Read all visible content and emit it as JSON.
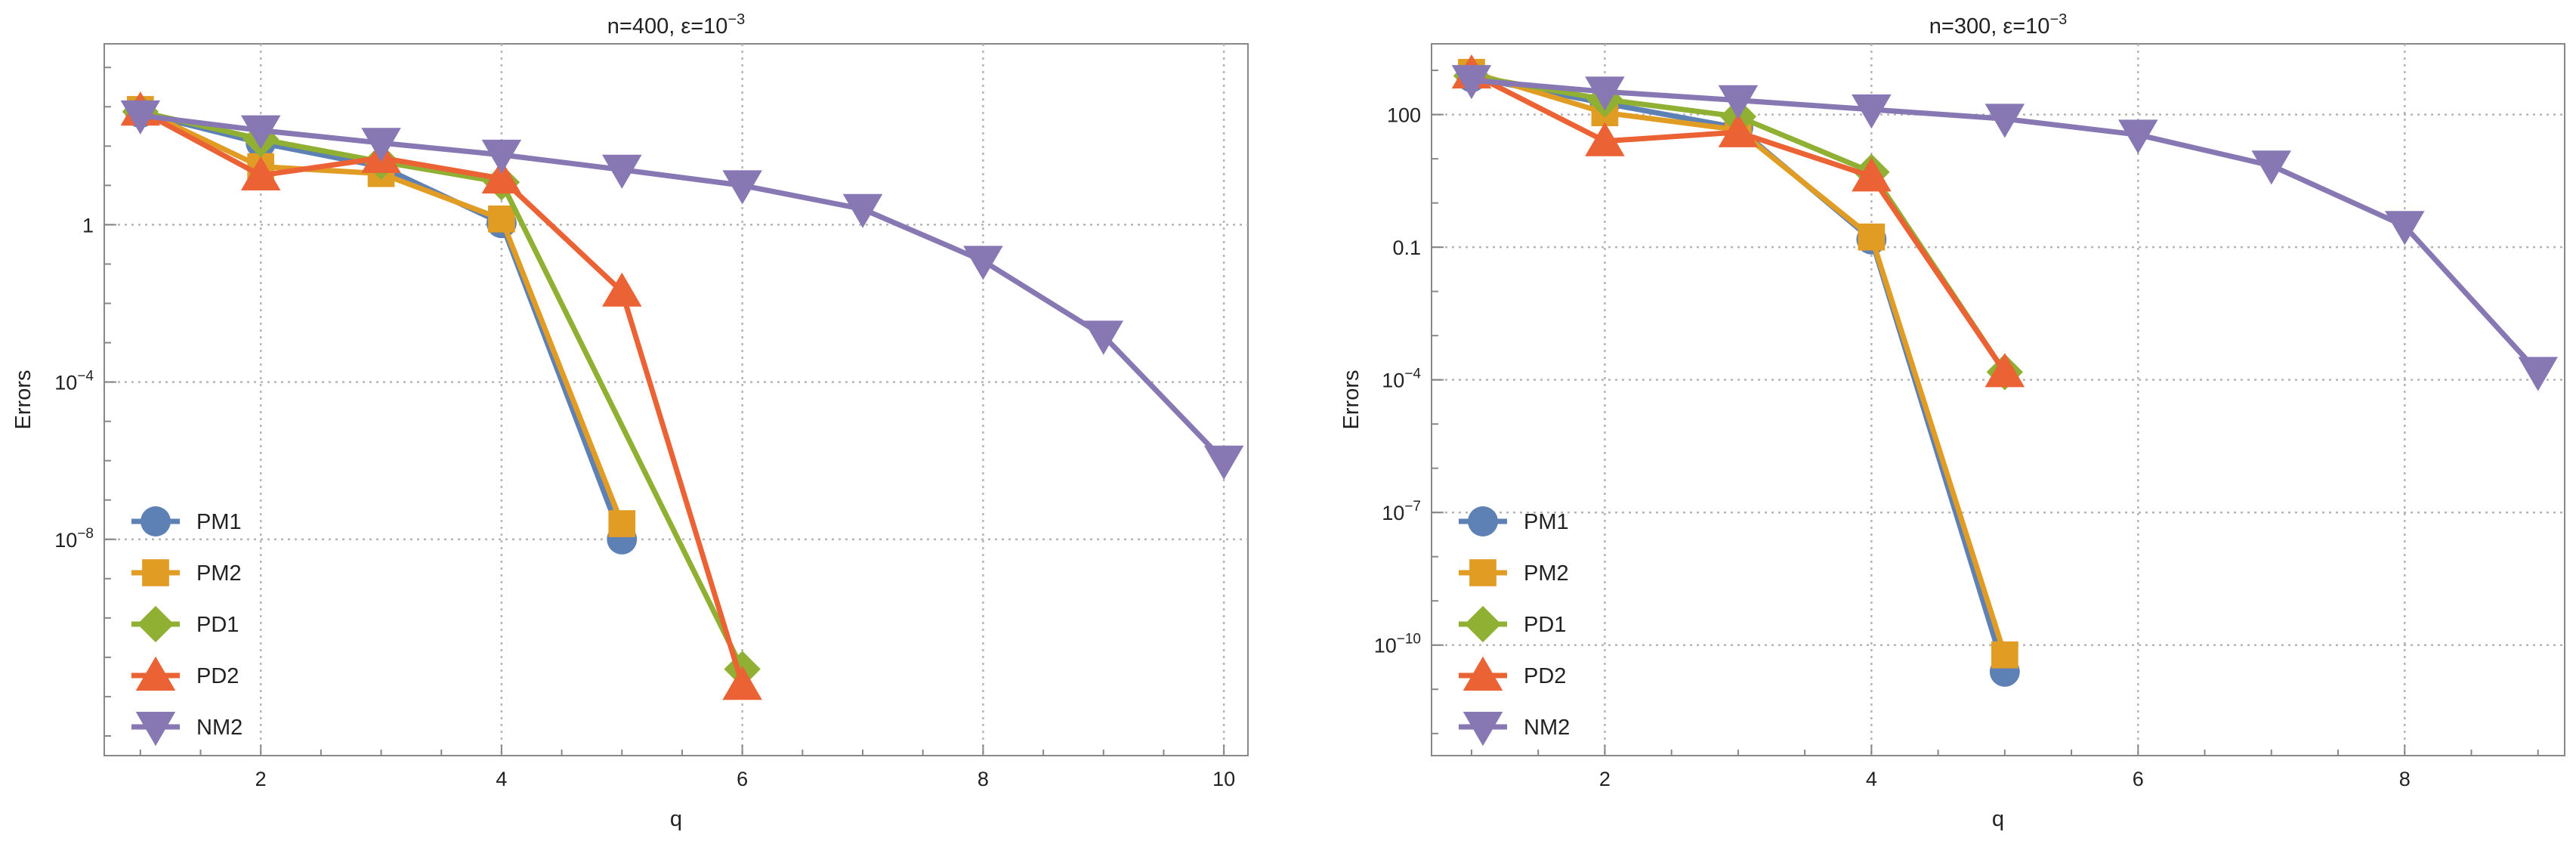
{
  "colors": {
    "PM1": "#5e81b5",
    "PM2": "#e19c24",
    "PD1": "#8fb032",
    "PD2": "#eb6235",
    "NM2": "#8778b3",
    "grid": "#b5b5b5",
    "frame": "#888888"
  },
  "chart_data": [
    {
      "type": "line",
      "title": "n=400, ε=10",
      "title_exponent": "−3",
      "xlabel": "q",
      "ylabel": "Errors",
      "y_scale": "log",
      "xlim": [
        0.7,
        10.2
      ],
      "ylim_log10": [
        -13.5,
        4.6
      ],
      "grid": true,
      "legend_position": "bottom-left",
      "x_ticks": [
        2,
        4,
        6,
        8,
        10
      ],
      "y_ticks": [
        {
          "value": 1,
          "label": "1",
          "sup": ""
        },
        {
          "value": 0.0001,
          "label": "10",
          "sup": "−4"
        },
        {
          "value": 1e-08,
          "label": "10",
          "sup": "−8"
        }
      ],
      "series": [
        {
          "name": "PM1",
          "marker": "circle",
          "x": [
            1,
            2,
            3,
            4,
            5
          ],
          "y": [
            700,
            120,
            30,
            1.1,
            1e-08
          ]
        },
        {
          "name": "PM2",
          "marker": "square",
          "x": [
            1,
            2,
            3,
            4,
            5
          ],
          "y": [
            850,
            30,
            20,
            1.4,
            2.5e-08
          ]
        },
        {
          "name": "PD1",
          "marker": "diamond",
          "x": [
            1,
            2,
            3,
            4,
            6
          ],
          "y": [
            750,
            150,
            40,
            12,
            5e-12
          ]
        },
        {
          "name": "PD2",
          "marker": "triangle-up",
          "x": [
            1,
            2,
            3,
            4,
            5,
            6
          ],
          "y": [
            800,
            18,
            50,
            15,
            0.02,
            2e-12
          ]
        },
        {
          "name": "NM2",
          "marker": "triangle-down",
          "x": [
            1,
            2,
            3,
            4,
            5,
            6,
            7,
            8,
            9,
            10
          ],
          "y": [
            600,
            250,
            120,
            60,
            25,
            10,
            2.5,
            0.12,
            0.0015,
            1e-06
          ]
        }
      ]
    },
    {
      "type": "line",
      "title": "n=300, ε=10",
      "title_exponent": "−3",
      "xlabel": "q",
      "ylabel": "Errors",
      "y_scale": "log",
      "xlim": [
        0.7,
        9.2
      ],
      "ylim_log10": [
        -12.5,
        3.6
      ],
      "grid": true,
      "legend_position": "bottom-left",
      "x_ticks": [
        2,
        4,
        6,
        8
      ],
      "y_ticks": [
        {
          "value": 100,
          "label": "100",
          "sup": ""
        },
        {
          "value": 0.1,
          "label": "0.1",
          "sup": ""
        },
        {
          "value": 0.0001,
          "label": "10",
          "sup": "−4"
        },
        {
          "value": 1e-07,
          "label": "10",
          "sup": "−7"
        },
        {
          "value": 1e-10,
          "label": "10",
          "sup": "−10"
        }
      ],
      "series": [
        {
          "name": "PM1",
          "marker": "circle",
          "x": [
            1,
            2,
            3,
            4,
            5
          ],
          "y": [
            700,
            180,
            50,
            0.15,
            2.5e-11
          ]
        },
        {
          "name": "PM2",
          "marker": "square",
          "x": [
            1,
            2,
            3,
            4,
            5
          ],
          "y": [
            900,
            110,
            45,
            0.17,
            6e-11
          ]
        },
        {
          "name": "PD1",
          "marker": "diamond",
          "x": [
            1,
            2,
            3,
            4,
            5
          ],
          "y": [
            750,
            220,
            90,
            5,
            0.00015
          ]
        },
        {
          "name": "PD2",
          "marker": "triangle-up",
          "x": [
            1,
            2,
            3,
            4,
            5
          ],
          "y": [
            850,
            25,
            40,
            4,
            0.00015
          ]
        },
        {
          "name": "NM2",
          "marker": "triangle-down",
          "x": [
            1,
            2,
            3,
            4,
            5,
            6,
            7,
            8,
            9
          ],
          "y": [
            600,
            330,
            210,
            130,
            80,
            35,
            7,
            0.3,
            0.00015
          ]
        }
      ]
    }
  ]
}
